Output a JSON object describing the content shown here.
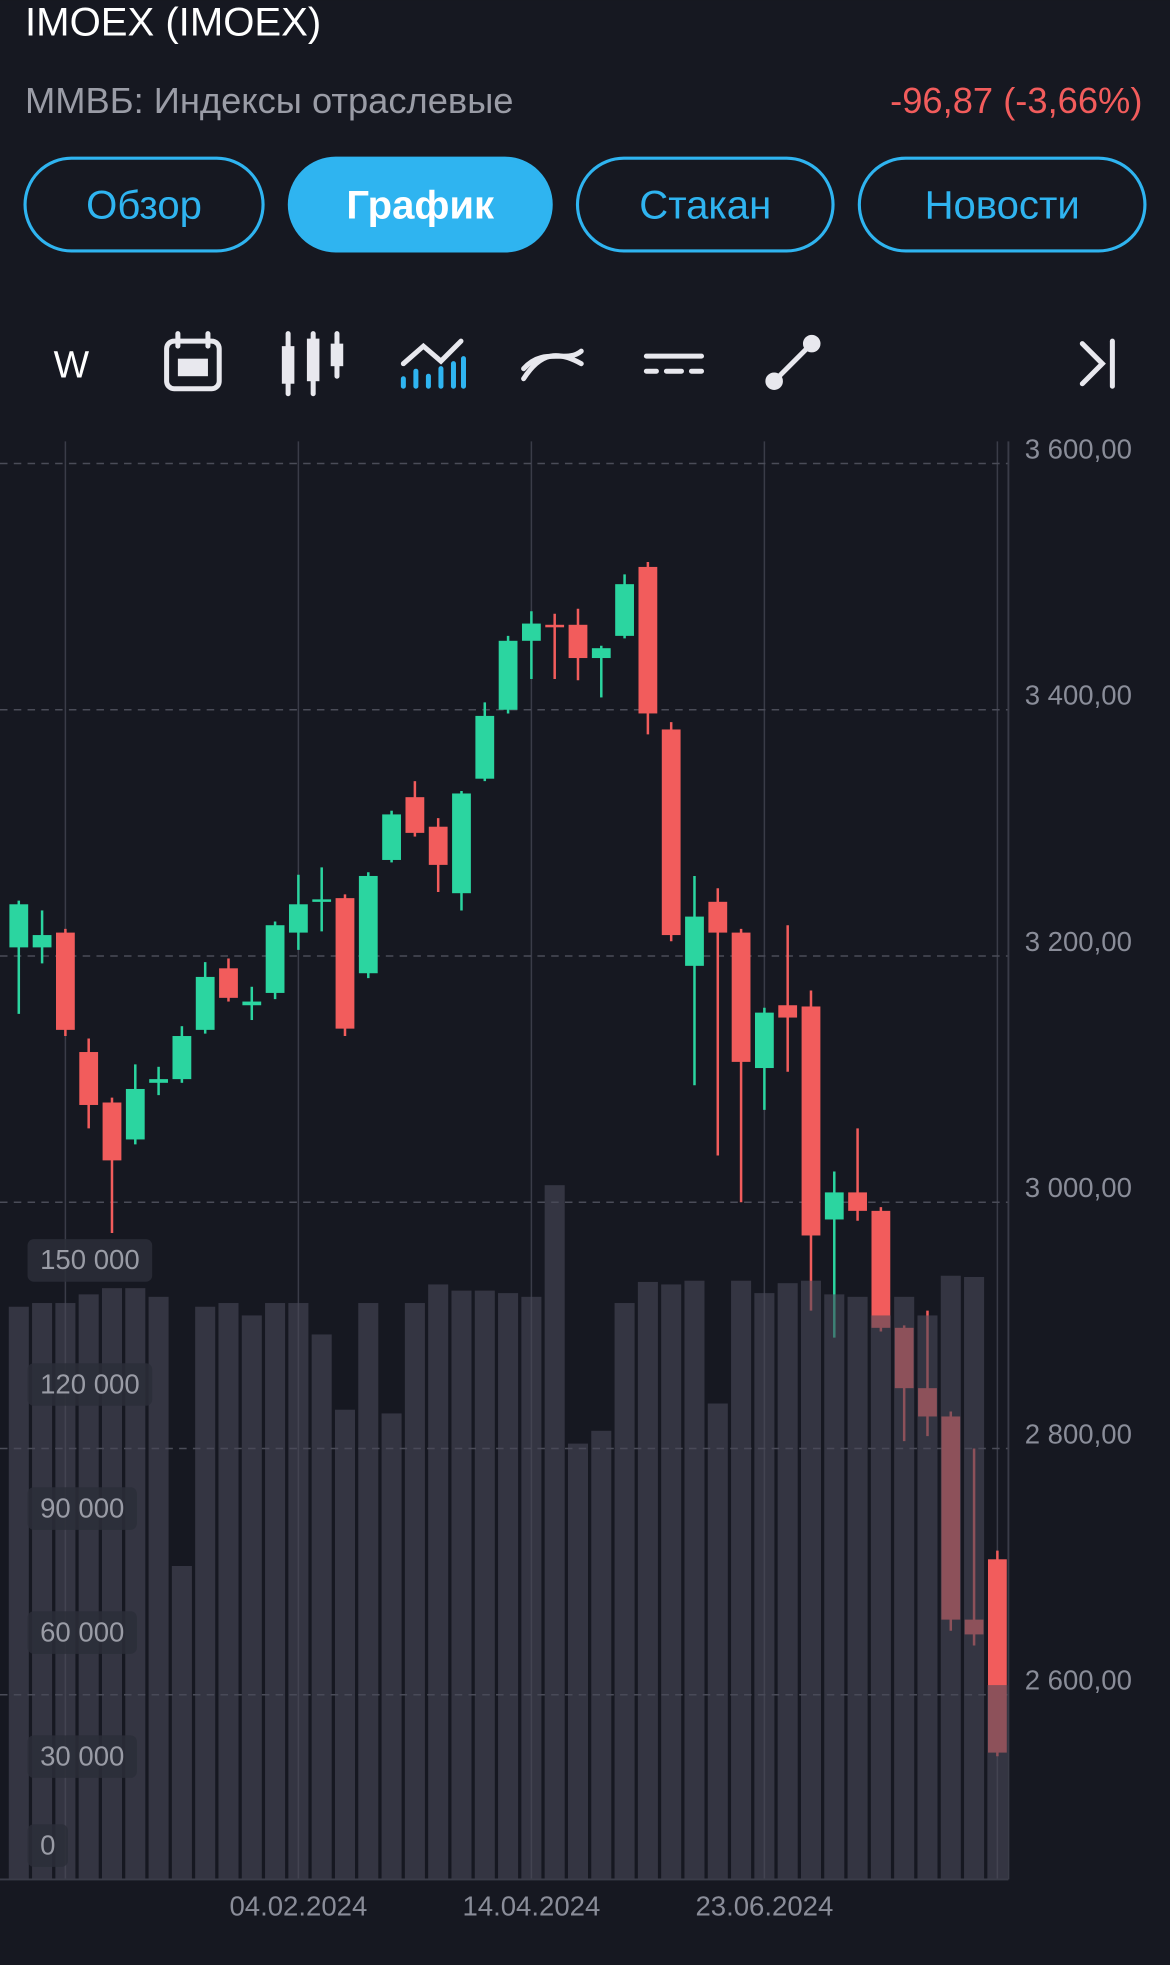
{
  "header": {
    "title": "IMOEX (IMOEX)",
    "subtitle": "ММВБ: Индексы отраслевые",
    "change": "-96,87 (-3,66%)"
  },
  "tabs": [
    "Обзор",
    "График",
    "Стакан",
    "Новости"
  ],
  "active_tab": 1,
  "toolbar": {
    "interval": "W"
  },
  "chart_data": {
    "type": "candlestick",
    "categories": [
      null,
      null,
      null,
      null,
      null,
      null,
      null,
      null,
      null,
      null,
      null,
      null,
      "04.02.2024",
      null,
      null,
      null,
      null,
      null,
      null,
      null,
      null,
      null,
      "14.04.2024",
      null,
      null,
      null,
      null,
      null,
      null,
      null,
      null,
      null,
      "23.06.2024",
      null,
      null,
      null,
      null,
      null,
      null,
      null,
      null,
      null,
      null
    ],
    "open": [
      3207,
      3207,
      3219,
      3122,
      3081,
      3051,
      3097,
      3100,
      3140,
      3190,
      3160,
      3170,
      3219,
      3244,
      3247,
      3186,
      3278,
      3329,
      3305,
      3251,
      3344,
      3400,
      3456,
      3469,
      3469,
      3442,
      3460,
      3516,
      3384,
      3192,
      3244,
      3219,
      3109,
      3160,
      3159,
      2986,
      3008,
      2993,
      2898,
      2849,
      2826,
      2661,
      2710
    ],
    "high": [
      3245,
      3237,
      3222,
      3133,
      3085,
      3112,
      3110,
      3143,
      3195,
      3198,
      3175,
      3228,
      3266,
      3272,
      3250,
      3268,
      3318,
      3342,
      3312,
      3334,
      3406,
      3460,
      3480,
      3478,
      3482,
      3452,
      3510,
      3520,
      3390,
      3265,
      3255,
      3222,
      3158,
      3225,
      3172,
      3025,
      3060,
      2996,
      2900,
      2912,
      2830,
      2800,
      2717
    ],
    "low": [
      3153,
      3194,
      3135,
      3060,
      2975,
      3047,
      3087,
      3097,
      3137,
      3163,
      3148,
      3165,
      3205,
      3220,
      3135,
      3182,
      3276,
      3297,
      3252,
      3237,
      3342,
      3397,
      3425,
      3425,
      3424,
      3410,
      3458,
      3380,
      3212,
      3095,
      3038,
      3000,
      3075,
      3106,
      2912,
      2890,
      2985,
      2895,
      2806,
      2810,
      2652,
      2640,
      2550
    ],
    "close": [
      3242,
      3217,
      3140,
      3079,
      3034,
      3092,
      3100,
      3135,
      3183,
      3166,
      3163,
      3225,
      3242,
      3246,
      3141,
      3265,
      3315,
      3300,
      3274,
      3332,
      3395,
      3456,
      3470,
      3468,
      3442,
      3450,
      3502,
      3397,
      3217,
      3232,
      3219,
      3114,
      3154,
      3150,
      2973,
      3008,
      2993,
      2898,
      2849,
      2826,
      2661,
      2649,
      2553
    ],
    "volume": [
      138500,
      139400,
      139400,
      141500,
      143000,
      143000,
      140900,
      75800,
      138500,
      139400,
      136400,
      139400,
      139400,
      131800,
      113600,
      139400,
      112700,
      139400,
      143900,
      142400,
      142400,
      141800,
      140900,
      167900,
      105400,
      108500,
      139400,
      144500,
      143900,
      144800,
      115100,
      144800,
      141800,
      144200,
      144800,
      141500,
      140900,
      136400,
      140900,
      136400,
      146000,
      145700,
      47000
    ],
    "up_color": "#2bd5a0",
    "down_color": "#f25c5c",
    "volume_color": "#4a4a58",
    "ylim": [
      2450,
      3618
    ],
    "yticks": [
      {
        "value": 2600,
        "label": "2 600,00"
      },
      {
        "value": 2800,
        "label": "2 800,00"
      },
      {
        "value": 3000,
        "label": "3 000,00"
      },
      {
        "value": 3200,
        "label": "3 200,00"
      },
      {
        "value": 3400,
        "label": "3 400,00"
      },
      {
        "value": 3600,
        "label": "3 600,00"
      }
    ],
    "y2lim": [
      0,
      347800
    ],
    "y2ticks": [
      0,
      {
        "value": 30000,
        "label": "30 000"
      },
      {
        "value": 60000,
        "label": "60 000"
      },
      {
        "value": 90000,
        "label": "90 000"
      },
      {
        "value": 120000,
        "label": "120 000"
      },
      {
        "value": 150000,
        "label": "150 000"
      }
    ],
    "grid": true
  }
}
